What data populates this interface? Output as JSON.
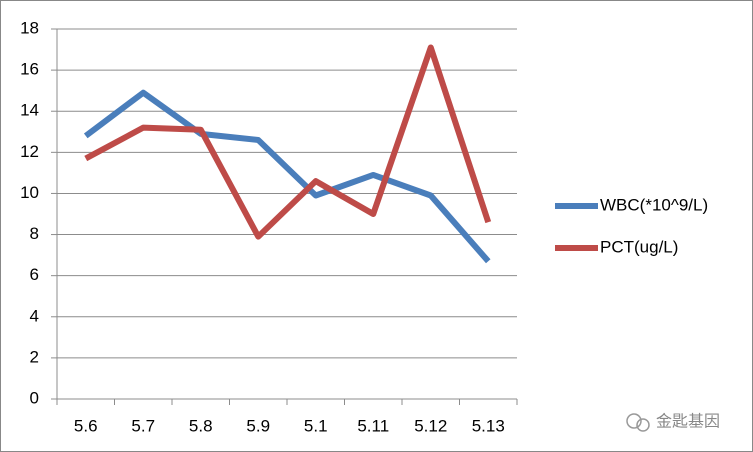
{
  "chart_data": {
    "type": "line",
    "categories": [
      "5.6",
      "5.7",
      "5.8",
      "5.9",
      "5.1",
      "5.11",
      "5.12",
      "5.13"
    ],
    "series": [
      {
        "name": "WBC(*10^9/L)",
        "color": "#4a7ebb",
        "values": [
          12.8,
          14.9,
          12.9,
          12.6,
          9.9,
          10.9,
          9.9,
          6.7
        ]
      },
      {
        "name": "PCT(ug/L)",
        "color": "#be4b48",
        "values": [
          11.7,
          13.2,
          13.1,
          7.9,
          10.6,
          9.0,
          17.1,
          8.6
        ]
      }
    ],
    "ylim": [
      0,
      18
    ],
    "yticks": [
      0,
      2,
      4,
      6,
      8,
      10,
      12,
      14,
      16,
      18
    ],
    "grid": true,
    "legend": "right"
  },
  "watermark": "金匙基因"
}
